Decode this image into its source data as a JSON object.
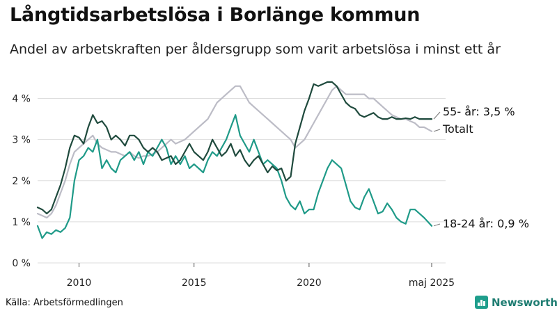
{
  "title": "Långtidsarbetslösa i Borlänge kommun",
  "subtitle": "Andel av arbetskraften per åldersgrupp som varit arbetslösa i minst ett år",
  "source": "Källa: Arbetsförmedlingen",
  "brand": "Newsworthy",
  "colors": {
    "series_55": "#1f4a3d",
    "series_total": "#bcbcc6",
    "series_18_24": "#1f9a88",
    "grid": "#dddddd",
    "brand": "#1f9e8c"
  },
  "chart_data": {
    "type": "line",
    "ylim": [
      0,
      4.5
    ],
    "xlim": [
      2008.2,
      2025.33
    ],
    "yticks": [
      0,
      1,
      2,
      3,
      4
    ],
    "ytick_labels": [
      "0 %",
      "1 %",
      "2 %",
      "3 %",
      "4 %"
    ],
    "xticks": [
      2010,
      2015,
      2020,
      2025.33
    ],
    "xtick_labels": [
      "2010",
      "2015",
      "2020",
      "maj 2025"
    ],
    "grid": true,
    "series": [
      {
        "name": "55- år",
        "end_label": "55- år: 3,5 %",
        "x": [
          2008.2,
          2008.4,
          2008.6,
          2008.8,
          2009.0,
          2009.2,
          2009.4,
          2009.6,
          2009.8,
          2010.0,
          2010.2,
          2010.4,
          2010.6,
          2010.8,
          2011.0,
          2011.2,
          2011.4,
          2011.6,
          2011.8,
          2012.0,
          2012.2,
          2012.4,
          2012.6,
          2012.8,
          2013.0,
          2013.2,
          2013.4,
          2013.6,
          2013.8,
          2014.0,
          2014.2,
          2014.4,
          2014.6,
          2014.8,
          2015.0,
          2015.2,
          2015.4,
          2015.6,
          2015.8,
          2016.0,
          2016.2,
          2016.4,
          2016.6,
          2016.8,
          2017.0,
          2017.2,
          2017.4,
          2017.6,
          2017.8,
          2018.0,
          2018.2,
          2018.4,
          2018.6,
          2018.8,
          2019.0,
          2019.2,
          2019.4,
          2019.6,
          2019.8,
          2020.0,
          2020.2,
          2020.4,
          2020.6,
          2020.8,
          2021.0,
          2021.2,
          2021.4,
          2021.6,
          2021.8,
          2022.0,
          2022.2,
          2022.4,
          2022.6,
          2022.8,
          2023.0,
          2023.2,
          2023.4,
          2023.6,
          2023.8,
          2024.0,
          2024.2,
          2024.4,
          2024.6,
          2024.8,
          2025.0,
          2025.33
        ],
        "values": [
          1.35,
          1.3,
          1.2,
          1.3,
          1.6,
          1.9,
          2.3,
          2.8,
          3.1,
          3.05,
          2.9,
          3.3,
          3.6,
          3.4,
          3.45,
          3.3,
          3.0,
          3.1,
          3.0,
          2.85,
          3.1,
          3.1,
          3.0,
          2.8,
          2.7,
          2.8,
          2.7,
          2.5,
          2.55,
          2.6,
          2.4,
          2.5,
          2.7,
          2.9,
          2.7,
          2.6,
          2.5,
          2.7,
          3.0,
          2.8,
          2.6,
          2.7,
          2.9,
          2.6,
          2.75,
          2.5,
          2.35,
          2.5,
          2.6,
          2.4,
          2.2,
          2.35,
          2.25,
          2.3,
          2.0,
          2.1,
          2.9,
          3.3,
          3.7,
          4.0,
          4.35,
          4.3,
          4.35,
          4.4,
          4.4,
          4.3,
          4.1,
          3.9,
          3.8,
          3.75,
          3.6,
          3.55,
          3.6,
          3.65,
          3.55,
          3.5,
          3.5,
          3.55,
          3.5,
          3.5,
          3.52,
          3.5,
          3.55,
          3.5,
          3.5,
          3.5
        ]
      },
      {
        "name": "Totalt",
        "end_label": "Totalt",
        "x": [
          2008.2,
          2008.4,
          2008.6,
          2008.8,
          2009.0,
          2009.2,
          2009.4,
          2009.6,
          2009.8,
          2010.0,
          2010.2,
          2010.4,
          2010.6,
          2010.8,
          2011.0,
          2011.2,
          2011.4,
          2011.6,
          2011.8,
          2012.0,
          2012.2,
          2012.4,
          2012.6,
          2012.8,
          2013.0,
          2013.2,
          2013.4,
          2013.6,
          2013.8,
          2014.0,
          2014.2,
          2014.4,
          2014.6,
          2014.8,
          2015.0,
          2015.2,
          2015.4,
          2015.6,
          2015.8,
          2016.0,
          2016.2,
          2016.4,
          2016.6,
          2016.8,
          2017.0,
          2017.2,
          2017.4,
          2017.6,
          2017.8,
          2018.0,
          2018.2,
          2018.4,
          2018.6,
          2018.8,
          2019.0,
          2019.2,
          2019.4,
          2019.6,
          2019.8,
          2020.0,
          2020.2,
          2020.4,
          2020.6,
          2020.8,
          2021.0,
          2021.2,
          2021.4,
          2021.6,
          2021.8,
          2022.0,
          2022.2,
          2022.4,
          2022.6,
          2022.8,
          2023.0,
          2023.2,
          2023.4,
          2023.6,
          2023.8,
          2024.0,
          2024.2,
          2024.4,
          2024.6,
          2024.8,
          2025.0,
          2025.33
        ],
        "values": [
          1.2,
          1.15,
          1.1,
          1.2,
          1.4,
          1.7,
          2.0,
          2.4,
          2.7,
          2.8,
          2.9,
          3.0,
          3.1,
          2.9,
          2.8,
          2.75,
          2.7,
          2.7,
          2.65,
          2.6,
          2.7,
          2.6,
          2.55,
          2.6,
          2.6,
          2.65,
          2.7,
          2.8,
          2.9,
          3.0,
          2.9,
          2.95,
          3.0,
          3.1,
          3.2,
          3.3,
          3.4,
          3.5,
          3.7,
          3.9,
          4.0,
          4.1,
          4.2,
          4.3,
          4.3,
          4.1,
          3.9,
          3.8,
          3.7,
          3.6,
          3.5,
          3.4,
          3.3,
          3.2,
          3.1,
          3.0,
          2.8,
          2.9,
          3.0,
          3.2,
          3.4,
          3.6,
          3.8,
          4.0,
          4.2,
          4.3,
          4.2,
          4.1,
          4.1,
          4.1,
          4.1,
          4.1,
          4.0,
          4.0,
          3.9,
          3.8,
          3.7,
          3.6,
          3.55,
          3.5,
          3.5,
          3.45,
          3.4,
          3.3,
          3.3,
          3.2
        ]
      },
      {
        "name": "18-24 år",
        "end_label": "18-24 år: 0,9 %",
        "x": [
          2008.2,
          2008.4,
          2008.6,
          2008.8,
          2009.0,
          2009.2,
          2009.4,
          2009.6,
          2009.8,
          2010.0,
          2010.2,
          2010.4,
          2010.6,
          2010.8,
          2011.0,
          2011.2,
          2011.4,
          2011.6,
          2011.8,
          2012.0,
          2012.2,
          2012.4,
          2012.6,
          2012.8,
          2013.0,
          2013.2,
          2013.4,
          2013.6,
          2013.8,
          2014.0,
          2014.2,
          2014.4,
          2014.6,
          2014.8,
          2015.0,
          2015.2,
          2015.4,
          2015.6,
          2015.8,
          2016.0,
          2016.2,
          2016.4,
          2016.6,
          2016.8,
          2017.0,
          2017.2,
          2017.4,
          2017.6,
          2017.8,
          2018.0,
          2018.2,
          2018.4,
          2018.6,
          2018.8,
          2019.0,
          2019.2,
          2019.4,
          2019.6,
          2019.8,
          2020.0,
          2020.2,
          2020.4,
          2020.6,
          2020.8,
          2021.0,
          2021.2,
          2021.4,
          2021.6,
          2021.8,
          2022.0,
          2022.2,
          2022.4,
          2022.6,
          2022.8,
          2023.0,
          2023.2,
          2023.4,
          2023.6,
          2023.8,
          2024.0,
          2024.2,
          2024.4,
          2024.6,
          2024.8,
          2025.0,
          2025.33
        ],
        "values": [
          0.9,
          0.6,
          0.75,
          0.7,
          0.8,
          0.75,
          0.85,
          1.1,
          2.0,
          2.5,
          2.6,
          2.8,
          2.7,
          3.0,
          2.3,
          2.5,
          2.3,
          2.2,
          2.5,
          2.6,
          2.7,
          2.5,
          2.7,
          2.4,
          2.7,
          2.6,
          2.8,
          3.0,
          2.8,
          2.4,
          2.6,
          2.4,
          2.6,
          2.3,
          2.4,
          2.3,
          2.2,
          2.5,
          2.7,
          2.6,
          2.8,
          3.0,
          3.3,
          3.6,
          3.1,
          2.9,
          2.7,
          3.0,
          2.7,
          2.4,
          2.5,
          2.4,
          2.3,
          2.0,
          1.6,
          1.4,
          1.3,
          1.5,
          1.2,
          1.3,
          1.3,
          1.7,
          2.0,
          2.3,
          2.5,
          2.4,
          2.3,
          1.9,
          1.5,
          1.35,
          1.3,
          1.6,
          1.8,
          1.5,
          1.2,
          1.25,
          1.45,
          1.3,
          1.1,
          1.0,
          0.95,
          1.3,
          1.3,
          1.2,
          1.1,
          0.9
        ]
      }
    ]
  }
}
